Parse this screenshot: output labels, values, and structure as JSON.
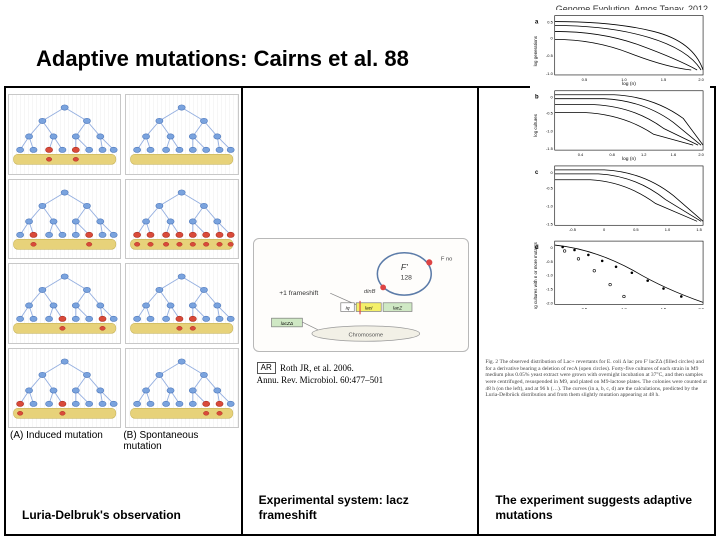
{
  "header_note": "Genome Evolution, Amos Tanay, 2012",
  "title": "Adaptive mutations: Cairns et al. 88",
  "tree_labels": {
    "a": "(A) Induced mutation",
    "b": "(B) Spontaneous mutation"
  },
  "captions": {
    "col1": "Luria-Delbruk's observation",
    "col2": "Experimental system: lacz frameshift",
    "col3": "The experiment suggests adaptive mutations"
  },
  "mid": {
    "f_label": "F'128",
    "plus1": "+1 frameshift",
    "dinB": "dinB",
    "Iq": "Iq",
    "lacI": "lacI",
    "lacZ": "lacZ",
    "laczD": "lacZΔ",
    "chrom": "Chromosome",
    "f_no": "F no"
  },
  "citation": {
    "author": "Roth JR, et al. 2006.",
    "journal": "Annu. Rev. Microbiol. 60:477–501"
  },
  "charts": {
    "panels": [
      {
        "label": "a",
        "ylab": "log generations with n mutants",
        "xlab": "log (n)",
        "xticks": [
          "0.5",
          "1.0",
          "1.5",
          "2.0"
        ],
        "yticks": [
          "-1.0",
          "-0.5",
          "0",
          "0.5"
        ]
      },
      {
        "label": "b",
        "ylab": "log cultures with n or more",
        "xlab": "log (n)",
        "xticks": [
          "0.4",
          "0.8",
          "1.2",
          "1.6",
          "2.0"
        ],
        "yticks": [
          "-1.5",
          "-1.0",
          "-0.5",
          "0"
        ]
      },
      {
        "label": "c",
        "ylab": "",
        "xlab": "",
        "xticks": [
          "-0.5",
          "0",
          "0.5",
          "1.0",
          "1.5"
        ],
        "yticks": [
          "-1.5",
          "-1.0",
          "-0.5",
          "0"
        ]
      },
      {
        "label": "d",
        "ylab": "log cultures with n or more mutants",
        "xlab": "log (n)",
        "xticks": [
          "0.5",
          "1.0",
          "1.5",
          "2.0"
        ],
        "yticks": [
          "-2.0",
          "-1.5",
          "-1.0",
          "-0.5",
          "0"
        ]
      }
    ]
  },
  "fig_caption": "Fig. 2  The observed distribution of Lac+ revertants for E. coli Δ lac pro F' lacZΔ (filled circles) and for a derivative bearing a deletion of recA (open circles). Forty-five cultures of each strain in M9 medium plus 0.05% yeast extract were grown with overnight incubation at 37°C, and then samples were centrifuged, resuspended in M9, and plated on M9-lactose plates. The colonies were counted at 48 h (on the left), and at 96 h (…). The curves (in a, b, c, d) are the calculations, predicted by the Luria-Delbrück distribution and from them slightly mutation appearing at 48 h."
}
